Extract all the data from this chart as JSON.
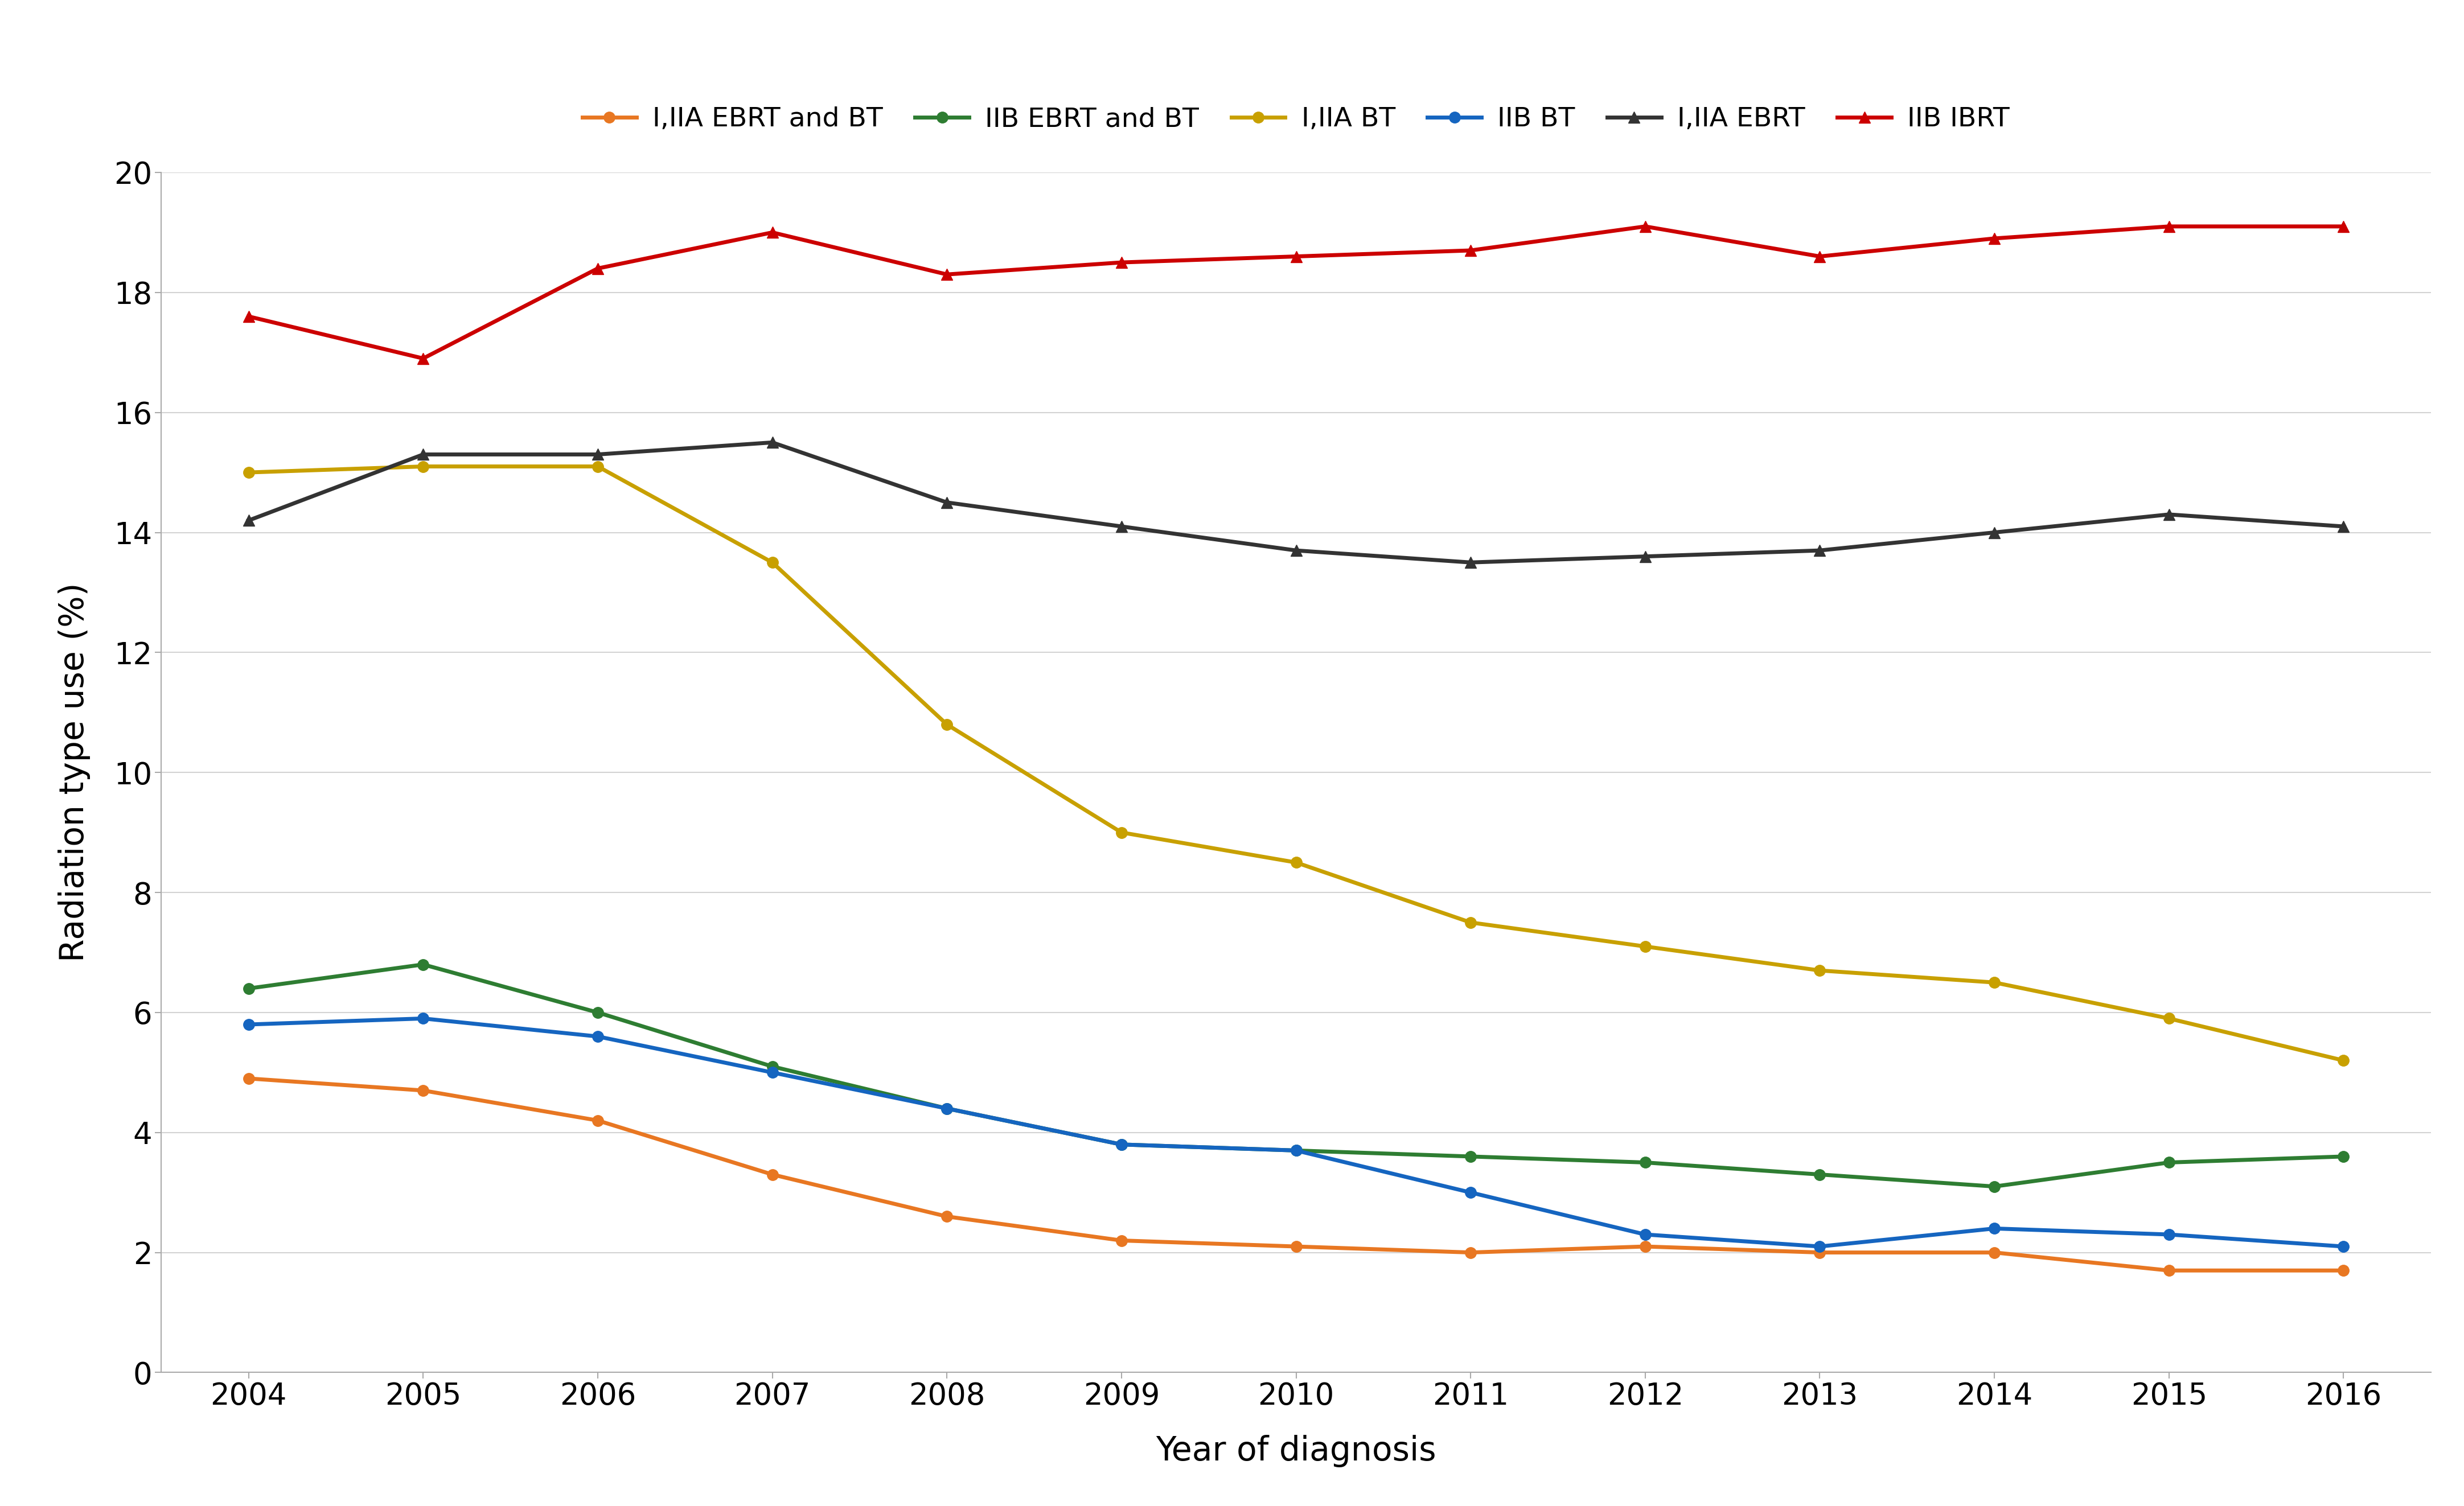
{
  "years": [
    2004,
    2005,
    2006,
    2007,
    2008,
    2009,
    2010,
    2011,
    2012,
    2013,
    2014,
    2015,
    2016
  ],
  "series": {
    "I,IIA EBRT and BT": {
      "color": "#E87722",
      "values": [
        4.9,
        4.7,
        4.2,
        3.3,
        2.6,
        2.2,
        2.1,
        2.0,
        2.1,
        2.0,
        2.0,
        1.7,
        1.7
      ],
      "marker": "o"
    },
    "IIB EBRT and BT": {
      "color": "#2E7D32",
      "values": [
        6.4,
        6.8,
        6.0,
        5.1,
        4.4,
        3.8,
        3.7,
        3.6,
        3.5,
        3.3,
        3.1,
        3.5,
        3.6
      ],
      "marker": "o"
    },
    "I,IIA BT": {
      "color": "#C8A000",
      "values": [
        15.0,
        15.1,
        15.1,
        13.5,
        10.8,
        9.0,
        8.5,
        7.5,
        7.1,
        6.7,
        6.5,
        5.9,
        5.2
      ],
      "marker": "o"
    },
    "IIB BT": {
      "color": "#1565C0",
      "values": [
        5.8,
        5.9,
        5.6,
        5.0,
        4.4,
        3.8,
        3.7,
        3.0,
        2.3,
        2.1,
        2.4,
        2.3,
        2.1
      ],
      "marker": "o"
    },
    "I,IIA EBRT": {
      "color": "#333333",
      "values": [
        14.2,
        15.3,
        15.3,
        15.5,
        14.5,
        14.1,
        13.7,
        13.5,
        13.6,
        13.7,
        14.0,
        14.3,
        14.1
      ],
      "marker": "^"
    },
    "IIB IBRT": {
      "color": "#CC0000",
      "values": [
        17.6,
        16.9,
        18.4,
        19.0,
        18.3,
        18.5,
        18.6,
        18.7,
        19.1,
        18.6,
        18.9,
        19.1,
        19.1
      ],
      "marker": "^"
    }
  },
  "legend_order": [
    "I,IIA EBRT and BT",
    "IIB EBRT and BT",
    "I,IIA BT",
    "IIB BT",
    "I,IIA EBRT",
    "IIB IBRT"
  ],
  "xlabel": "Year of diagnosis",
  "ylabel": "Radiation type use (%)",
  "ylim": [
    0,
    20
  ],
  "yticks": [
    0,
    2,
    4,
    6,
    8,
    10,
    12,
    14,
    16,
    18,
    20
  ],
  "axis_fontsize": 42,
  "tick_fontsize": 38,
  "legend_fontsize": 34,
  "linewidth": 5.0,
  "markersize": 14,
  "background_color": "#ffffff",
  "grid_color": "#d3d3d3"
}
